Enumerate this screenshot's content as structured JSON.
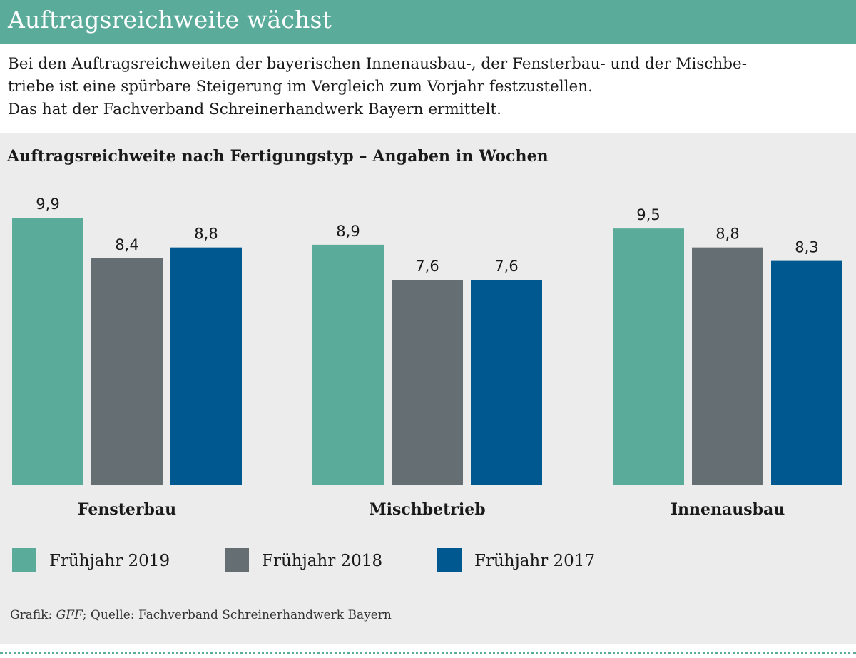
{
  "header": {
    "title": "Auftragsreichweite wächst"
  },
  "intro": {
    "lines": [
      "Bei den Auftragsreichweiten der bayerischen Innenausbau-, der Fensterbau- und der Mischbe-",
      "triebe ist eine spürbare Steigerung im Vergleich zum Vorjahr festzustellen.",
      "Das hat der Fachverband Schreinerhandwerk Bayern ermittelt."
    ]
  },
  "colors": {
    "accent": "#5aab9a",
    "panel": "#ececec"
  },
  "chart_data": {
    "type": "bar",
    "title": "Auftragsreichweite nach Fertigungstyp – Angaben in Wochen",
    "categories": [
      "Fensterbau",
      "Mischbetrieb",
      "Innenausbau"
    ],
    "series": [
      {
        "name": "Frühjahr 2019",
        "color": "#5aab9a",
        "values": [
          9.9,
          8.9,
          9.5
        ],
        "labels": [
          "9,9",
          "8,9",
          "9,5"
        ]
      },
      {
        "name": "Frühjahr 2018",
        "color": "#646e73",
        "values": [
          8.4,
          7.6,
          8.8
        ],
        "labels": [
          "8,4",
          "7,6",
          "8,8"
        ]
      },
      {
        "name": "Frühjahr 2017",
        "color": "#005890",
        "values": [
          8.8,
          7.6,
          8.3
        ],
        "labels": [
          "8,8",
          "7,6",
          "8,3"
        ]
      }
    ],
    "ylim": [
      0,
      9.9
    ],
    "grid": false,
    "legend": "bottom-left"
  },
  "source": {
    "prefix": "Grafik: ",
    "agency": "GFF",
    "rest": "; Quelle: Fachverband Schreinerhandwerk Bayern"
  }
}
